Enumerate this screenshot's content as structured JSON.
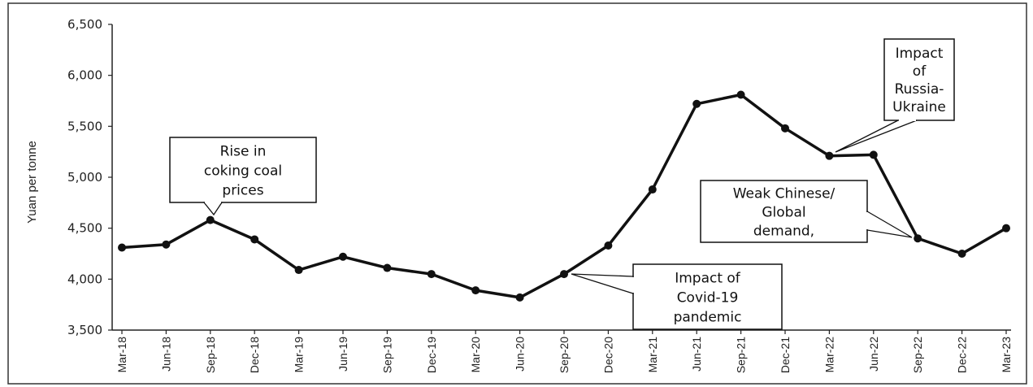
{
  "chart_data": {
    "type": "line",
    "title": "",
    "xlabel": "",
    "ylabel": "Yuan per tonne",
    "ylim": [
      3500,
      6500
    ],
    "yticks": [
      "3,500",
      "4,000",
      "4,500",
      "5,000",
      "5,500",
      "6,000",
      "6,500"
    ],
    "grid": false,
    "categories": [
      "Mar-18",
      "Jun-18",
      "Sep-18",
      "Dec-18",
      "Mar-19",
      "Jun-19",
      "Sep-19",
      "Dec-19",
      "Mar-20",
      "Jun-20",
      "Sep-20",
      "Dec-20",
      "Mar-21",
      "Jun-21",
      "Sep-21",
      "Dec-21",
      "Mar-22",
      "Jun-22",
      "Sep-22",
      "Dec-22",
      "Mar-23"
    ],
    "series": [
      {
        "values": [
          4310,
          4340,
          4580,
          4390,
          4090,
          4220,
          4110,
          4050,
          3890,
          3820,
          4050,
          4330,
          4880,
          5720,
          5810,
          5480,
          5210,
          5220,
          4400,
          4250,
          4500
        ],
        "color": "#111111"
      }
    ],
    "annotations": [
      {
        "lines": [
          "Rise in",
          "coking coal",
          "prices"
        ],
        "category": "Sep-18"
      },
      {
        "lines": [
          "Impact of",
          "Covid-19",
          "pandemic"
        ],
        "category": "Sep-20"
      },
      {
        "lines": [
          "Impact",
          "of",
          "Russia-",
          "Ukraine"
        ],
        "category": "Mar-22"
      },
      {
        "lines": [
          "Weak Chinese/",
          "Global",
          "demand,"
        ],
        "category": "Sep-22"
      }
    ]
  }
}
